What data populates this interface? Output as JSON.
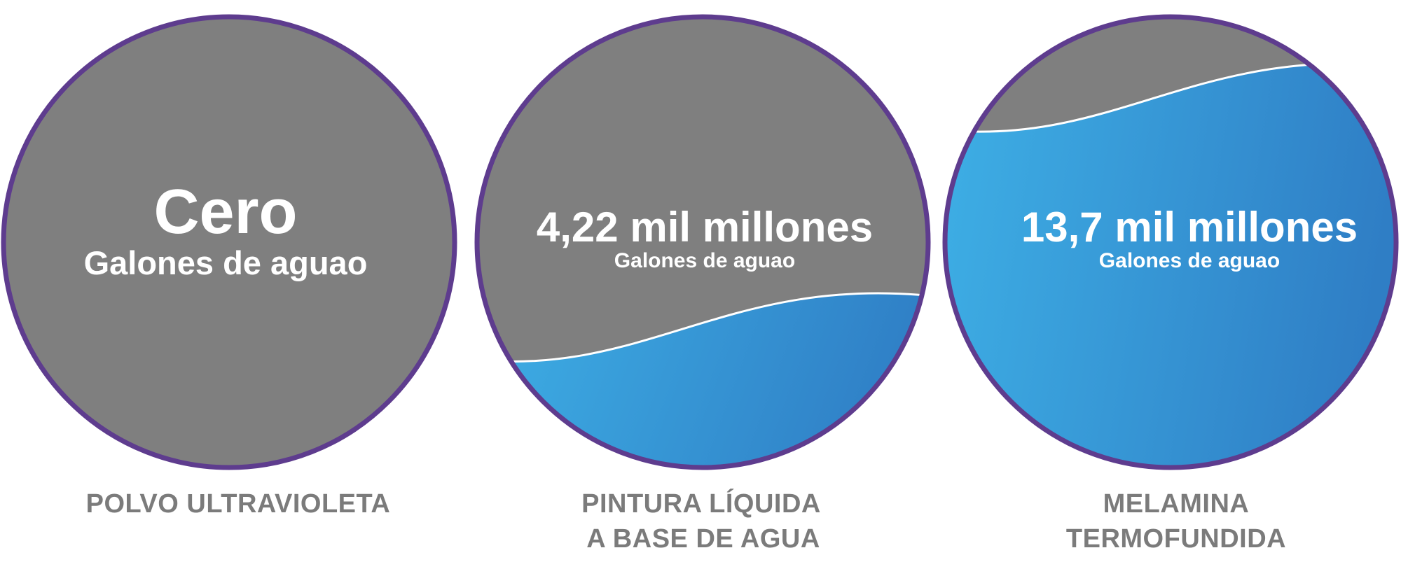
{
  "colors": {
    "ring": "#5e3c8e",
    "empty": "#7f7f7f",
    "water_light": "#3eb0e6",
    "water_dark": "#2f7ec5",
    "wave_line": "#ffffff",
    "text_label": "#7b7b7b",
    "text_value": "#ffffff"
  },
  "chart_data": {
    "type": "other",
    "subtype": "liquid-fill circles",
    "items": [
      {
        "value_label": "Cero",
        "unit_label": "Galones de aguao",
        "category_lines": [
          "POLVO ULTRAVIOLETA"
        ],
        "fill_fraction": 0.0
      },
      {
        "value_label": "4,22 mil millones",
        "unit_label": "Galones de aguao",
        "category_lines": [
          "PINTURA LÍQUIDA",
          "A BASE DE AGUA"
        ],
        "fill_fraction": 0.31
      },
      {
        "value_label": "13,7 mil millones",
        "unit_label": "Galones de aguao",
        "category_lines": [
          "MELAMINA",
          "TERMOFUNDIDA"
        ],
        "fill_fraction": 0.82
      }
    ]
  }
}
